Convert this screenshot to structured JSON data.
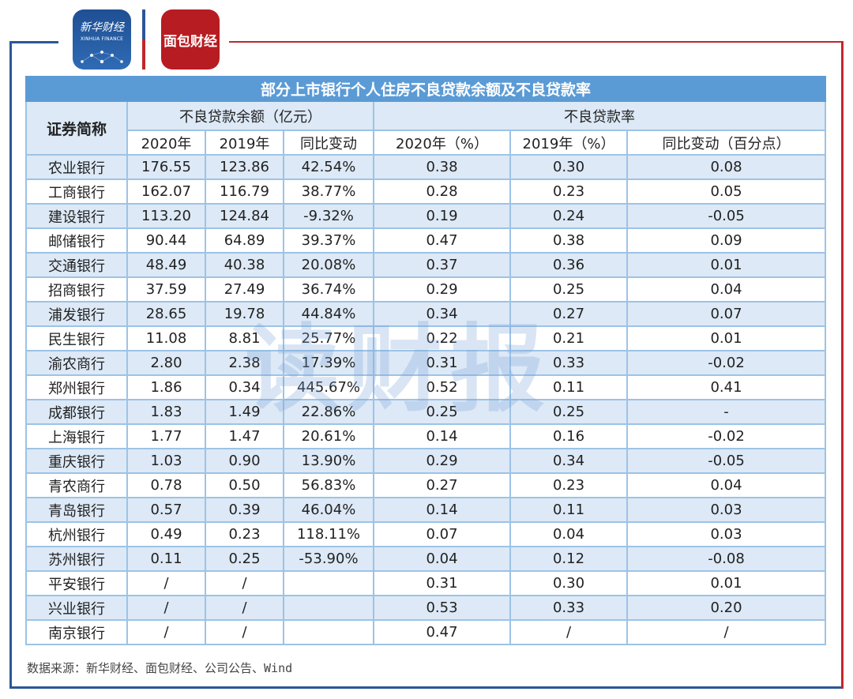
{
  "logos": {
    "xinhua_cn": "新华财经",
    "xinhua_en": "XINHUA FINANCE",
    "mianbao_cn": "面包财经"
  },
  "colors": {
    "header": "#5b9bd5",
    "stripe": "#dde9f6",
    "grid": "#9dc3e6",
    "frame_blue": "#2b5797",
    "frame_red": "#c0272d"
  },
  "chart_data": {
    "type": "table",
    "title": "部分上市银行个人住房不良贷款余额及不良贷款率",
    "group_headers": {
      "name": "证券简称",
      "balance": "不良贷款余额（亿元）",
      "ratio": "不良贷款率"
    },
    "columns": [
      "2020年",
      "2019年",
      "同比变动",
      "2020年（%）",
      "2019年（%）",
      "同比变动（百分点）"
    ],
    "rows": [
      [
        "农业银行",
        "176.55",
        "123.86",
        "42.54%",
        "0.38",
        "0.30",
        "0.08"
      ],
      [
        "工商银行",
        "162.07",
        "116.79",
        "38.77%",
        "0.28",
        "0.23",
        "0.05"
      ],
      [
        "建设银行",
        "113.20",
        "124.84",
        "-9.32%",
        "0.19",
        "0.24",
        "-0.05"
      ],
      [
        "邮储银行",
        "90.44",
        "64.89",
        "39.37%",
        "0.47",
        "0.38",
        "0.09"
      ],
      [
        "交通银行",
        "48.49",
        "40.38",
        "20.08%",
        "0.37",
        "0.36",
        "0.01"
      ],
      [
        "招商银行",
        "37.59",
        "27.49",
        "36.74%",
        "0.29",
        "0.25",
        "0.04"
      ],
      [
        "浦发银行",
        "28.65",
        "19.78",
        "44.84%",
        "0.34",
        "0.27",
        "0.07"
      ],
      [
        "民生银行",
        "11.08",
        "8.81",
        "25.77%",
        "0.22",
        "0.21",
        "0.01"
      ],
      [
        "渝农商行",
        "2.80",
        "2.38",
        "17.39%",
        "0.31",
        "0.33",
        "-0.02"
      ],
      [
        "郑州银行",
        "1.86",
        "0.34",
        "445.67%",
        "0.52",
        "0.11",
        "0.41"
      ],
      [
        "成都银行",
        "1.83",
        "1.49",
        "22.86%",
        "0.25",
        "0.25",
        "-"
      ],
      [
        "上海银行",
        "1.77",
        "1.47",
        "20.61%",
        "0.14",
        "0.16",
        "-0.02"
      ],
      [
        "重庆银行",
        "1.03",
        "0.90",
        "13.90%",
        "0.29",
        "0.34",
        "-0.05"
      ],
      [
        "青农商行",
        "0.78",
        "0.50",
        "56.83%",
        "0.27",
        "0.23",
        "0.04"
      ],
      [
        "青岛银行",
        "0.57",
        "0.39",
        "46.04%",
        "0.14",
        "0.11",
        "0.03"
      ],
      [
        "杭州银行",
        "0.49",
        "0.23",
        "118.11%",
        "0.07",
        "0.04",
        "0.03"
      ],
      [
        "苏州银行",
        "0.11",
        "0.25",
        "-53.90%",
        "0.04",
        "0.12",
        "-0.08"
      ],
      [
        "平安银行",
        "/",
        "/",
        "",
        "0.31",
        "0.30",
        "0.01"
      ],
      [
        "兴业银行",
        "/",
        "/",
        "",
        "0.53",
        "0.33",
        "0.20"
      ],
      [
        "南京银行",
        "/",
        "/",
        "",
        "0.47",
        "/",
        "/"
      ]
    ]
  },
  "watermark": "读财报",
  "source": "数据来源：新华财经、面包财经、公司公告、Wind"
}
